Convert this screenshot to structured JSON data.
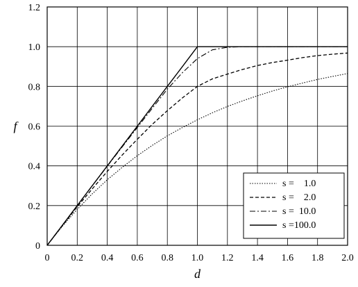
{
  "chart_data": {
    "type": "line",
    "title": "",
    "xlabel": "d",
    "ylabel": "f",
    "xlim": [
      0,
      2.0
    ],
    "ylim": [
      0,
      1.2
    ],
    "grid": true,
    "legend_placement": "bottom-right",
    "x_ticks": [
      "0",
      "0.2",
      "0.4",
      "0.6",
      "0.8",
      "1.0",
      "1.2",
      "1.4",
      "1.6",
      "1.8",
      "2.0"
    ],
    "y_ticks": [
      "0",
      "0.2",
      "0.4",
      "0.6",
      "0.8",
      "1.0",
      "1.2"
    ],
    "x": [
      0,
      0.1,
      0.2,
      0.3,
      0.4,
      0.5,
      0.6,
      0.7,
      0.8,
      0.9,
      1.0,
      1.1,
      1.2,
      1.3,
      1.4,
      1.5,
      1.6,
      1.7,
      1.8,
      1.9,
      2.0
    ],
    "series": [
      {
        "name": "s =    1.0",
        "style": "dotted",
        "values": [
          0,
          0.095,
          0.181,
          0.259,
          0.33,
          0.393,
          0.451,
          0.503,
          0.551,
          0.593,
          0.632,
          0.667,
          0.699,
          0.727,
          0.753,
          0.777,
          0.798,
          0.817,
          0.835,
          0.85,
          0.865
        ]
      },
      {
        "name": "s =    2.0",
        "style": "dashed",
        "values": [
          0,
          0.098,
          0.194,
          0.284,
          0.372,
          0.455,
          0.534,
          0.609,
          0.678,
          0.742,
          0.8,
          0.838,
          0.862,
          0.885,
          0.905,
          0.92,
          0.932,
          0.945,
          0.955,
          0.962,
          0.968
        ]
      },
      {
        "name": "s =  10.0",
        "style": "dashdot",
        "values": [
          0,
          0.1,
          0.2,
          0.299,
          0.398,
          0.496,
          0.593,
          0.69,
          0.786,
          0.869,
          0.94,
          0.984,
          0.997,
          1.0,
          1.0,
          1.0,
          1.0,
          1.0,
          1.0,
          1.0,
          1.0
        ]
      },
      {
        "name": "s =100.0",
        "style": "solid",
        "values": [
          0,
          0.1,
          0.2,
          0.3,
          0.4,
          0.5,
          0.6,
          0.7,
          0.8,
          0.9,
          1.0,
          1.0,
          1.0,
          1.0,
          1.0,
          1.0,
          1.0,
          1.0,
          1.0,
          1.0,
          1.0
        ]
      }
    ]
  }
}
